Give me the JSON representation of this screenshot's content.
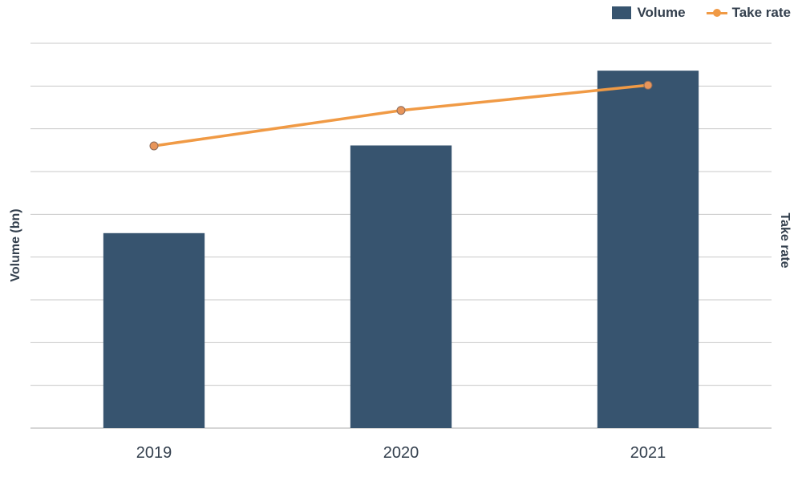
{
  "chart_data": {
    "type": "bar",
    "categories": [
      "2019",
      "2020",
      "2021"
    ],
    "series": [
      {
        "name": "Volume",
        "type": "bar",
        "axis": "left",
        "color": "#37546f",
        "values": [
          45.6,
          66.1,
          83.6
        ]
      },
      {
        "name": "Take rate",
        "type": "line",
        "axis": "right",
        "color": "#f09a45",
        "marker_color": "#e8955a",
        "values": [
          66.0,
          74.3,
          80.2
        ]
      }
    ],
    "title": "",
    "xlabel": "",
    "ylabel": "Volume (bn)",
    "y2label": "Take rate",
    "ylim": [
      0,
      90
    ],
    "y2lim": [
      0,
      90
    ],
    "gridlines": 9,
    "grid": true,
    "legend": "top-right",
    "tick_labels_y": "none",
    "grid_color": "#c8c8c8",
    "text_color": "#333f4d"
  }
}
